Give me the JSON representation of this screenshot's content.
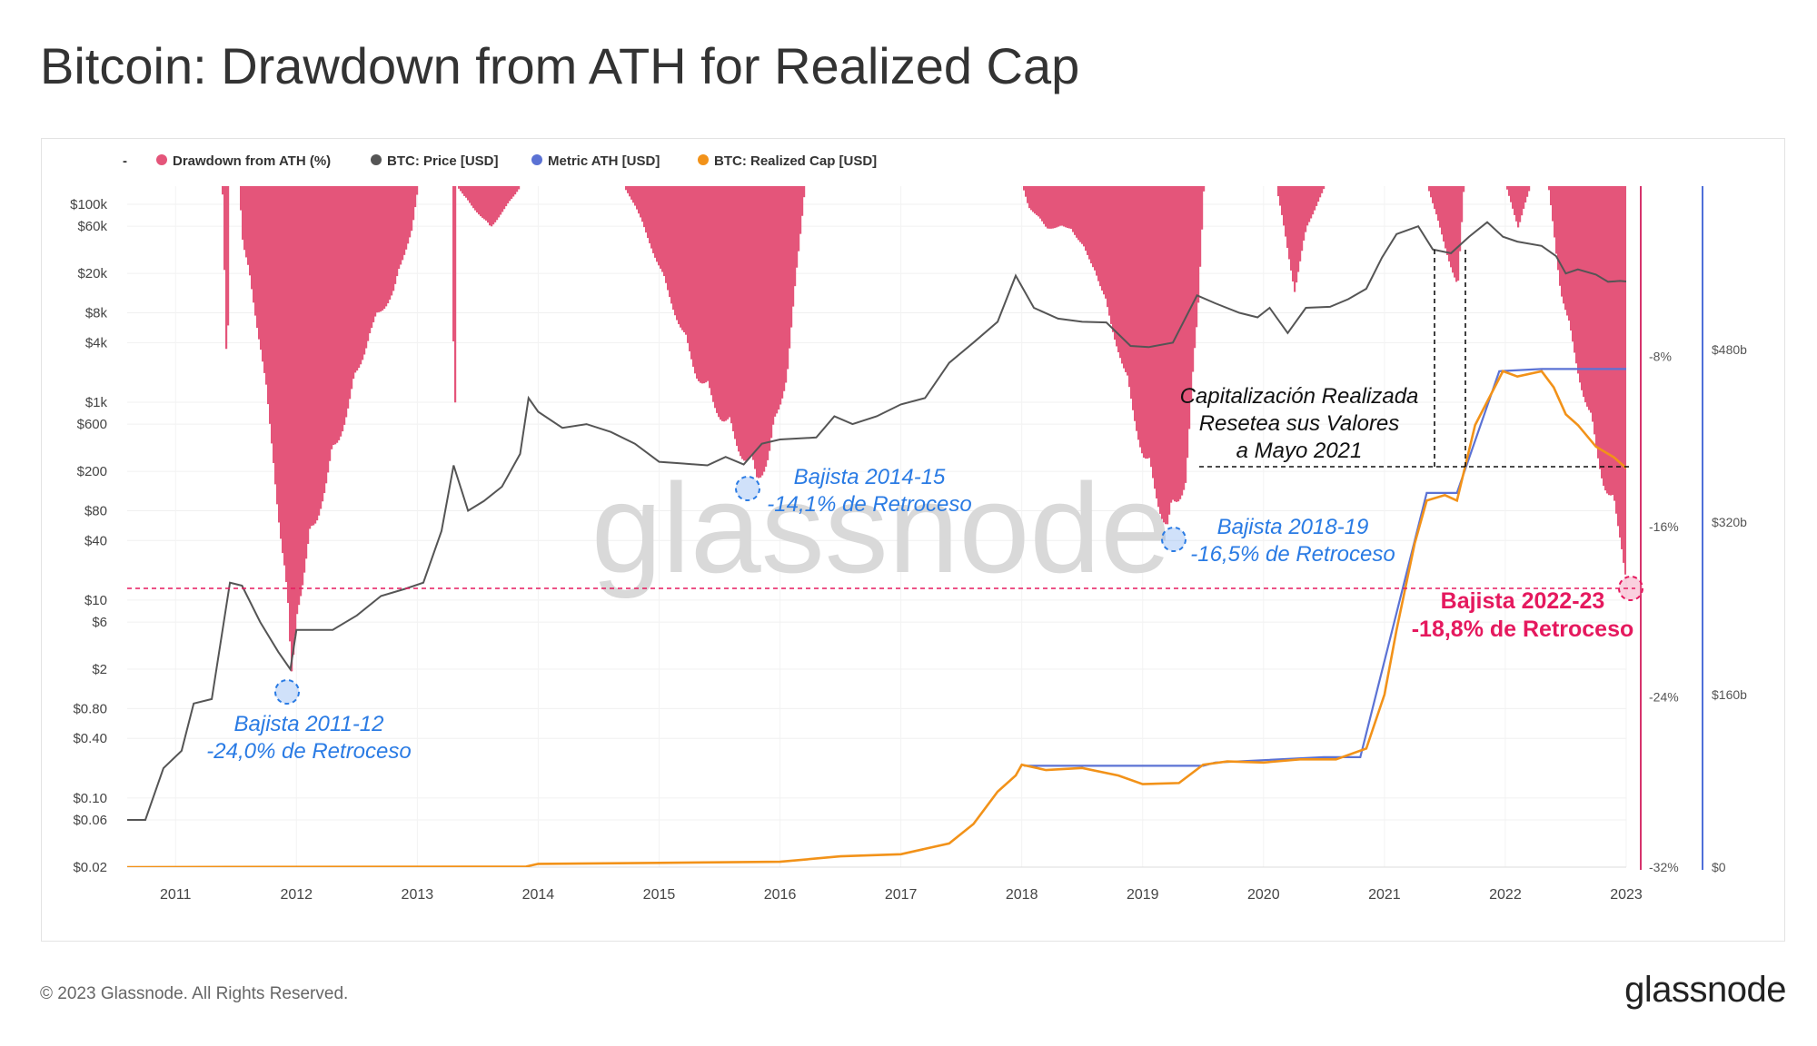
{
  "title": "Bitcoin: Drawdown from ATH for Realized Cap",
  "footer": {
    "copyright": "© 2023 Glassnode. All Rights Reserved.",
    "logo": "glassnode"
  },
  "watermark": "glassnode",
  "colors": {
    "drawdown": "#e4557a",
    "price": "#555555",
    "metric_ath": "#5b72d4",
    "realized_cap": "#f29219",
    "annot_blue": "#2a7be4",
    "annot_red": "#e5195e"
  },
  "chart_data": {
    "type": "line",
    "legend": {
      "prefix": "-",
      "items": [
        {
          "label": "Drawdown from ATH (%)",
          "color": "#e4557a"
        },
        {
          "label": "BTC: Price [USD]",
          "color": "#555555"
        },
        {
          "label": "Metric ATH [USD]",
          "color": "#5b72d4"
        },
        {
          "label": "BTC: Realized Cap [USD]",
          "color": "#f29219"
        }
      ]
    },
    "x_ticks": [
      "2011",
      "2012",
      "2013",
      "2014",
      "2015",
      "2016",
      "2017",
      "2018",
      "2019",
      "2020",
      "2021",
      "2022",
      "2023"
    ],
    "price_axis": {
      "scale": "log",
      "ticks": [
        "$100k",
        "$60k",
        "$20k",
        "$8k",
        "$4k",
        "$1k",
        "$600",
        "$200",
        "$80",
        "$40",
        "$10",
        "$6",
        "$2",
        "$0.80",
        "$0.40",
        "$0.10",
        "$0.06",
        "$0.02"
      ]
    },
    "drawdown_axis": {
      "ticks": [
        "-8%",
        "-16%",
        "-24%",
        "-32%"
      ],
      "range": [
        -32,
        0
      ]
    },
    "realized_cap_axis": {
      "ticks": [
        "$480b",
        "$320b",
        "$160b",
        "$0"
      ],
      "range": [
        0,
        480
      ]
    },
    "price_series": [
      [
        2010.6,
        0.06
      ],
      [
        2010.75,
        0.06
      ],
      [
        2010.9,
        0.2
      ],
      [
        2011.05,
        0.3
      ],
      [
        2011.15,
        0.9
      ],
      [
        2011.3,
        1
      ],
      [
        2011.45,
        15
      ],
      [
        2011.55,
        14
      ],
      [
        2011.7,
        6
      ],
      [
        2011.85,
        3
      ],
      [
        2011.95,
        2
      ],
      [
        2012.0,
        5
      ],
      [
        2012.1,
        5
      ],
      [
        2012.3,
        5
      ],
      [
        2012.5,
        7
      ],
      [
        2012.7,
        11
      ],
      [
        2012.9,
        13
      ],
      [
        2013.05,
        15
      ],
      [
        2013.2,
        50
      ],
      [
        2013.3,
        230
      ],
      [
        2013.42,
        80
      ],
      [
        2013.55,
        100
      ],
      [
        2013.7,
        140
      ],
      [
        2013.85,
        300
      ],
      [
        2013.92,
        1100
      ],
      [
        2014.0,
        800
      ],
      [
        2014.2,
        550
      ],
      [
        2014.4,
        600
      ],
      [
        2014.6,
        500
      ],
      [
        2014.8,
        380
      ],
      [
        2015.0,
        250
      ],
      [
        2015.2,
        240
      ],
      [
        2015.4,
        230
      ],
      [
        2015.55,
        280
      ],
      [
        2015.7,
        235
      ],
      [
        2015.85,
        380
      ],
      [
        2016.0,
        420
      ],
      [
        2016.3,
        440
      ],
      [
        2016.45,
        720
      ],
      [
        2016.6,
        600
      ],
      [
        2016.8,
        720
      ],
      [
        2017.0,
        950
      ],
      [
        2017.2,
        1100
      ],
      [
        2017.4,
        2500
      ],
      [
        2017.6,
        4000
      ],
      [
        2017.8,
        6500
      ],
      [
        2017.95,
        19000
      ],
      [
        2018.1,
        9000
      ],
      [
        2018.3,
        7000
      ],
      [
        2018.5,
        6500
      ],
      [
        2018.7,
        6400
      ],
      [
        2018.9,
        3700
      ],
      [
        2019.05,
        3600
      ],
      [
        2019.25,
        4000
      ],
      [
        2019.45,
        12000
      ],
      [
        2019.6,
        10000
      ],
      [
        2019.8,
        8000
      ],
      [
        2019.95,
        7200
      ],
      [
        2020.05,
        9000
      ],
      [
        2020.2,
        5000
      ],
      [
        2020.35,
        9000
      ],
      [
        2020.55,
        9200
      ],
      [
        2020.7,
        11000
      ],
      [
        2020.85,
        14000
      ],
      [
        2020.98,
        29000
      ],
      [
        2021.1,
        50000
      ],
      [
        2021.28,
        60000
      ],
      [
        2021.4,
        35000
      ],
      [
        2021.55,
        32000
      ],
      [
        2021.7,
        47000
      ],
      [
        2021.85,
        66000
      ],
      [
        2021.98,
        47000
      ],
      [
        2022.1,
        42000
      ],
      [
        2022.3,
        38000
      ],
      [
        2022.42,
        30000
      ],
      [
        2022.5,
        20000
      ],
      [
        2022.6,
        22000
      ],
      [
        2022.75,
        19500
      ],
      [
        2022.85,
        16500
      ],
      [
        2022.95,
        16800
      ],
      [
        2023.0,
        16600
      ]
    ],
    "realized_cap_series": [
      [
        2010.6,
        0
      ],
      [
        2013.9,
        0.5
      ],
      [
        2014.0,
        3
      ],
      [
        2015.0,
        4
      ],
      [
        2016.0,
        5
      ],
      [
        2016.5,
        10
      ],
      [
        2017.0,
        12
      ],
      [
        2017.4,
        22
      ],
      [
        2017.6,
        40
      ],
      [
        2017.8,
        70
      ],
      [
        2017.95,
        85
      ],
      [
        2018.0,
        95
      ],
      [
        2018.2,
        90
      ],
      [
        2018.5,
        92
      ],
      [
        2018.8,
        85
      ],
      [
        2019.0,
        77
      ],
      [
        2019.3,
        78
      ],
      [
        2019.5,
        95
      ],
      [
        2019.7,
        98
      ],
      [
        2020.0,
        97
      ],
      [
        2020.3,
        100
      ],
      [
        2020.6,
        100
      ],
      [
        2020.85,
        110
      ],
      [
        2021.0,
        160
      ],
      [
        2021.1,
        220
      ],
      [
        2021.25,
        300
      ],
      [
        2021.35,
        340
      ],
      [
        2021.5,
        345
      ],
      [
        2021.6,
        340
      ],
      [
        2021.75,
        410
      ],
      [
        2021.98,
        460
      ],
      [
        2022.1,
        455
      ],
      [
        2022.3,
        460
      ],
      [
        2022.4,
        445
      ],
      [
        2022.5,
        420
      ],
      [
        2022.6,
        410
      ],
      [
        2022.75,
        390
      ],
      [
        2022.9,
        380
      ],
      [
        2023.0,
        370
      ]
    ],
    "metric_ath_series": [
      [
        2018.02,
        94
      ],
      [
        2019.5,
        94
      ],
      [
        2019.6,
        97
      ],
      [
        2020.5,
        102
      ],
      [
        2020.8,
        102
      ],
      [
        2021.35,
        347
      ],
      [
        2021.6,
        347
      ],
      [
        2021.95,
        460
      ],
      [
        2022.3,
        462
      ],
      [
        2023.0,
        462
      ]
    ],
    "drawdown_series": [
      [
        2010.6,
        0
      ],
      [
        2011.38,
        0
      ],
      [
        2011.42,
        -10
      ],
      [
        2011.44,
        0
      ],
      [
        2011.52,
        0
      ],
      [
        2011.55,
        -3
      ],
      [
        2011.6,
        -4
      ],
      [
        2011.7,
        -8
      ],
      [
        2011.8,
        -13
      ],
      [
        2011.9,
        -19
      ],
      [
        2011.95,
        -24
      ],
      [
        2012.0,
        -20
      ],
      [
        2012.2,
        -15
      ],
      [
        2012.4,
        -11
      ],
      [
        2012.6,
        -7
      ],
      [
        2012.8,
        -5
      ],
      [
        2012.95,
        -2
      ],
      [
        2013.0,
        0
      ],
      [
        2013.28,
        0
      ],
      [
        2013.3,
        -14
      ],
      [
        2013.32,
        0
      ],
      [
        2013.45,
        -1
      ],
      [
        2013.6,
        -2
      ],
      [
        2013.85,
        0
      ],
      [
        2014.7,
        0
      ],
      [
        2014.8,
        -1
      ],
      [
        2015.0,
        -4
      ],
      [
        2015.3,
        -9
      ],
      [
        2015.6,
        -12
      ],
      [
        2015.8,
        -14.1
      ],
      [
        2015.9,
        -13
      ],
      [
        2016.05,
        -9
      ],
      [
        2016.15,
        -3
      ],
      [
        2016.2,
        0
      ],
      [
        2018.0,
        0
      ],
      [
        2018.05,
        -1
      ],
      [
        2018.2,
        -2
      ],
      [
        2018.4,
        -2
      ],
      [
        2018.6,
        -4
      ],
      [
        2018.8,
        -8
      ],
      [
        2019.0,
        -13
      ],
      [
        2019.2,
        -16.5
      ],
      [
        2019.35,
        -14
      ],
      [
        2019.45,
        -6
      ],
      [
        2019.5,
        0
      ],
      [
        2020.1,
        0
      ],
      [
        2020.25,
        -5
      ],
      [
        2020.35,
        -2
      ],
      [
        2020.5,
        0
      ],
      [
        2021.35,
        0
      ],
      [
        2021.5,
        -3
      ],
      [
        2021.6,
        -5
      ],
      [
        2021.65,
        0
      ],
      [
        2022.0,
        0
      ],
      [
        2022.1,
        -2
      ],
      [
        2022.2,
        0
      ],
      [
        2022.35,
        0
      ],
      [
        2022.45,
        -5
      ],
      [
        2022.6,
        -9
      ],
      [
        2022.8,
        -14
      ],
      [
        2022.95,
        -17
      ],
      [
        2023.0,
        -18.8
      ]
    ],
    "annotations": [
      {
        "line1": "Bajista 2011-12",
        "line2": "-24,0% de Retroceso",
        "color": "#2a7be4"
      },
      {
        "line1": "Bajista 2014-15",
        "line2": "-14,1% de Retroceso",
        "color": "#2a7be4"
      },
      {
        "line1": "Bajista 2018-19",
        "line2": "-16,5% de Retroceso",
        "color": "#2a7be4"
      },
      {
        "line1": "Bajista 2022-23",
        "line2": "-18,8% de Retroceso",
        "color": "#e5195e"
      },
      {
        "line1": "Capitalización Realizada",
        "line2": "Resetea sus Valores",
        "line3": "a Mayo 2021",
        "color": "#111111"
      }
    ]
  }
}
